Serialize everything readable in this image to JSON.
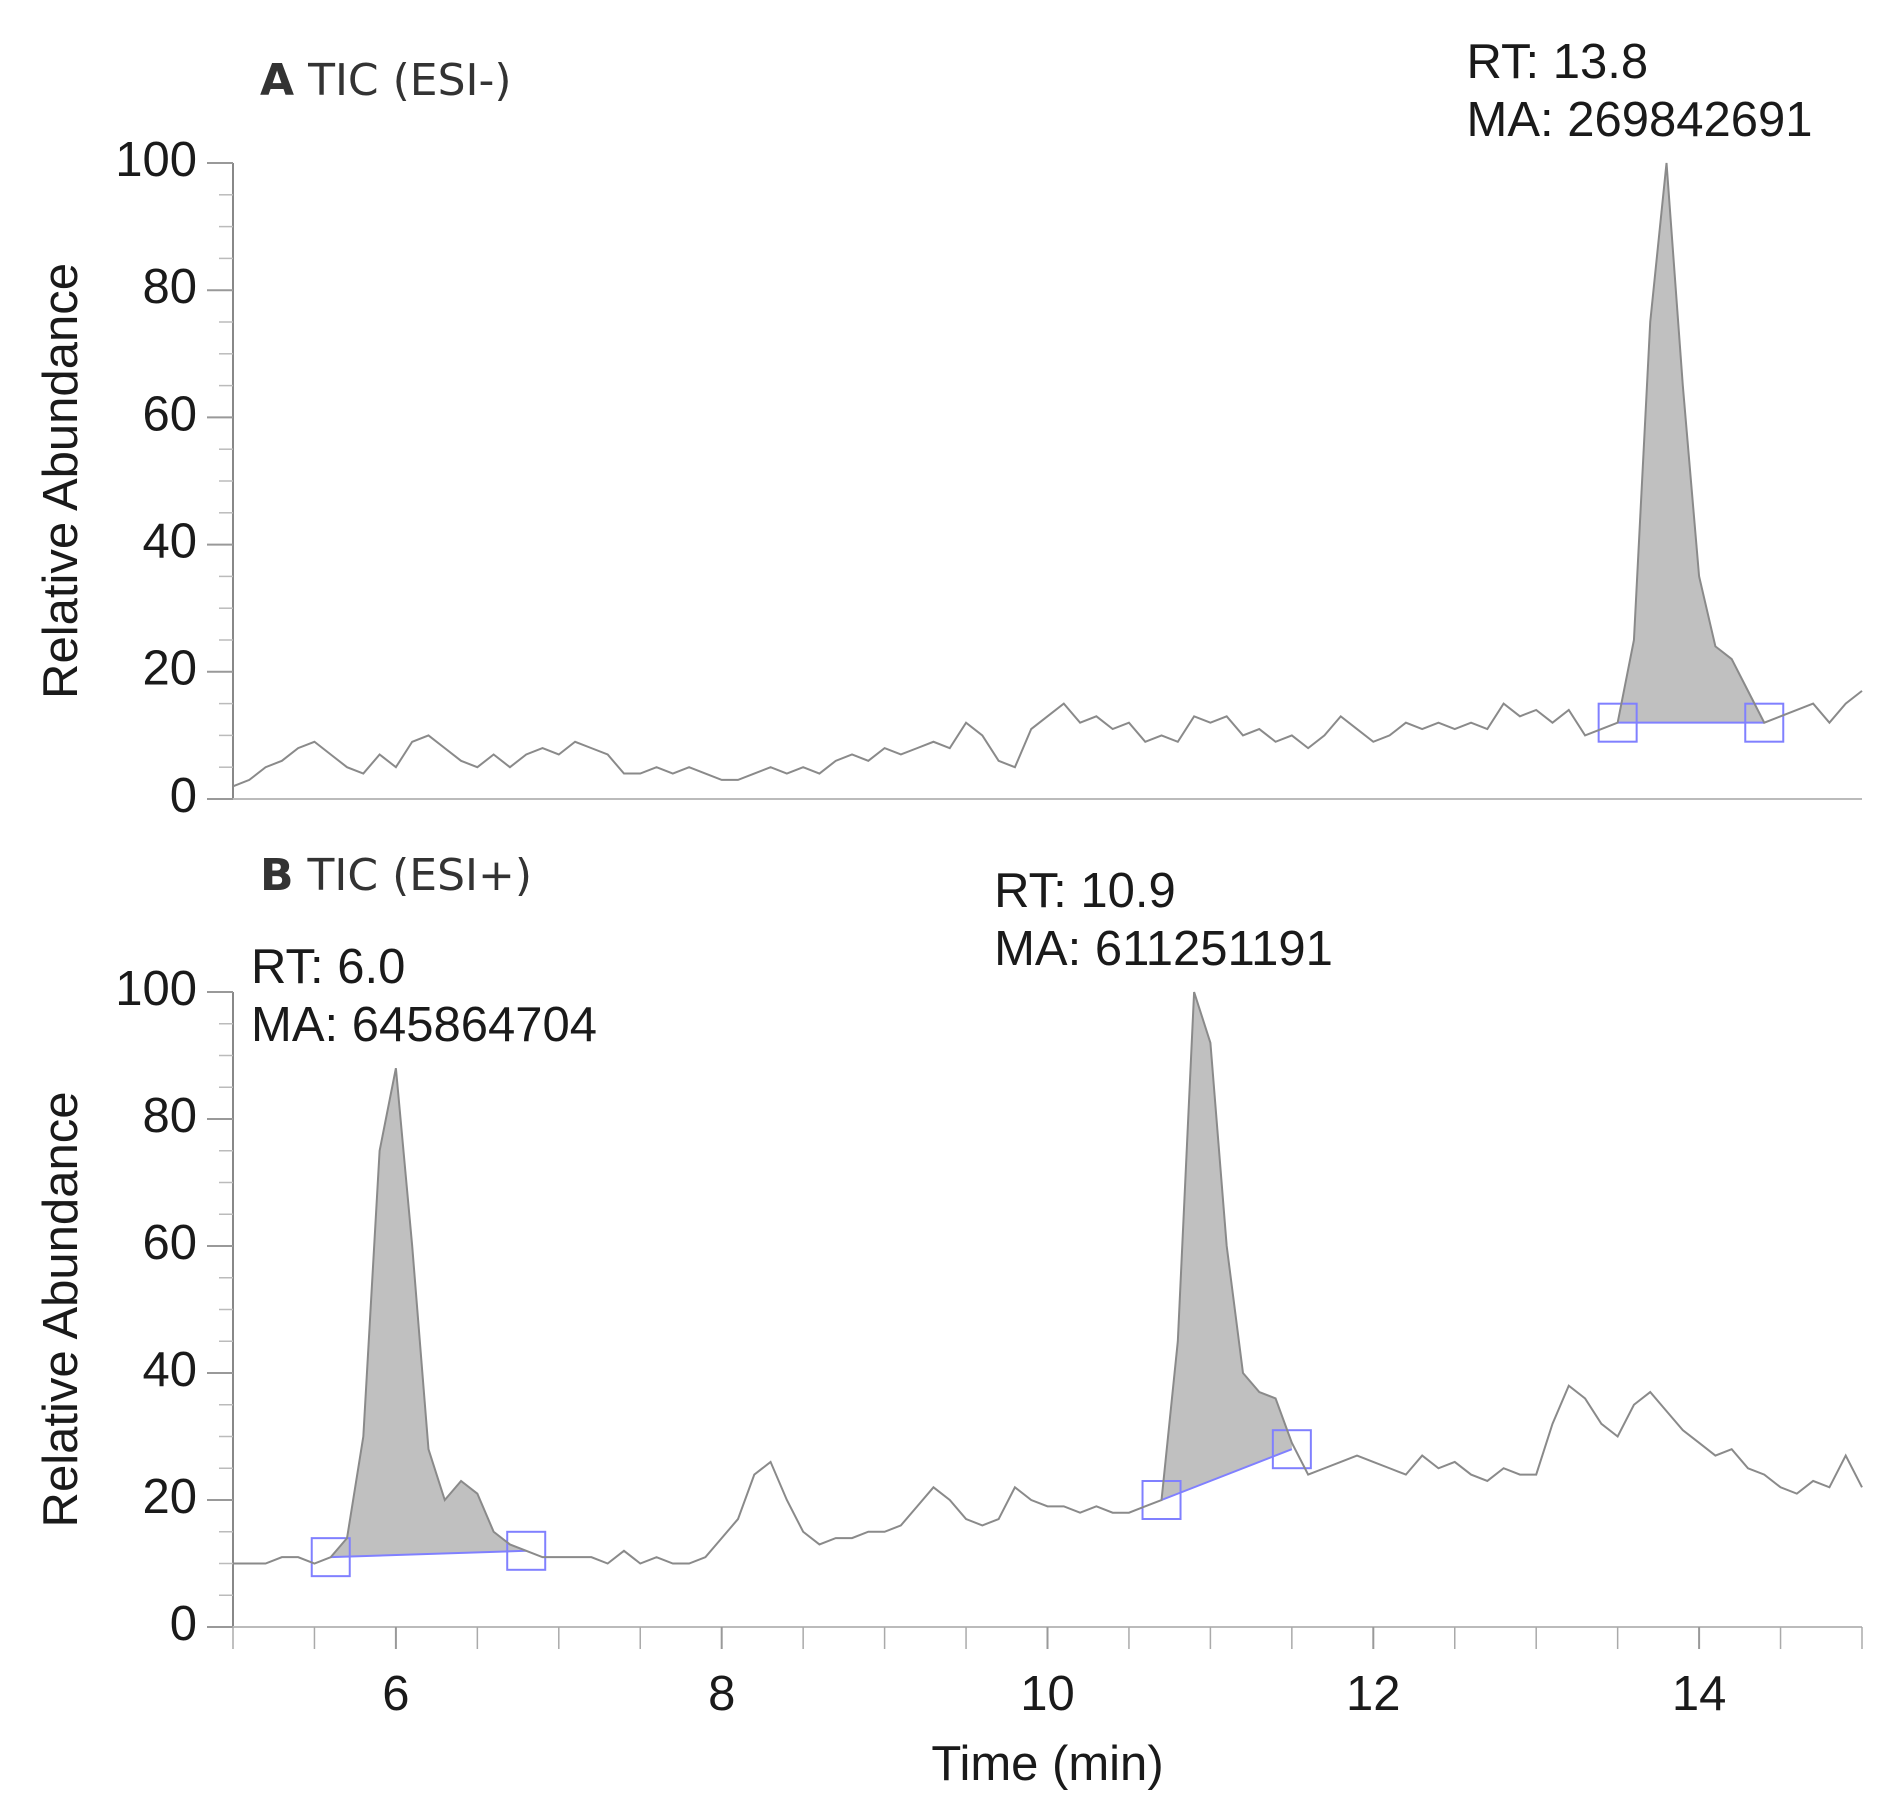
{
  "chart_data": [
    {
      "type": "line",
      "panel": "A",
      "title": "TIC (ESI-)",
      "ylabel": "Relative Abundance",
      "x": [
        5.0,
        5.1,
        5.2,
        5.3,
        5.4,
        5.5,
        5.6,
        5.7,
        5.8,
        5.9,
        6.0,
        6.1,
        6.2,
        6.3,
        6.4,
        6.5,
        6.6,
        6.7,
        6.8,
        6.9,
        7.0,
        7.1,
        7.2,
        7.3,
        7.4,
        7.5,
        7.6,
        7.7,
        7.8,
        7.9,
        8.0,
        8.1,
        8.2,
        8.3,
        8.4,
        8.5,
        8.6,
        8.7,
        8.8,
        8.9,
        9.0,
        9.1,
        9.2,
        9.3,
        9.4,
        9.5,
        9.6,
        9.7,
        9.8,
        9.9,
        10.0,
        10.1,
        10.2,
        10.3,
        10.4,
        10.5,
        10.6,
        10.7,
        10.8,
        10.9,
        11.0,
        11.1,
        11.2,
        11.3,
        11.4,
        11.5,
        11.6,
        11.7,
        11.8,
        11.9,
        12.0,
        12.1,
        12.2,
        12.3,
        12.4,
        12.5,
        12.6,
        12.7,
        12.8,
        12.9,
        13.0,
        13.1,
        13.2,
        13.3,
        13.4,
        13.5,
        13.6,
        13.7,
        13.8,
        13.9,
        14.0,
        14.1,
        14.2,
        14.3,
        14.4,
        14.5,
        14.6,
        14.7,
        14.8,
        14.9,
        15.0
      ],
      "values": [
        2,
        3,
        5,
        6,
        8,
        9,
        7,
        5,
        4,
        7,
        5,
        9,
        10,
        8,
        6,
        5,
        7,
        5,
        7,
        8,
        7,
        9,
        8,
        7,
        4,
        4,
        5,
        4,
        5,
        4,
        3,
        3,
        4,
        5,
        4,
        5,
        4,
        6,
        7,
        6,
        8,
        7,
        8,
        9,
        8,
        12,
        10,
        6,
        5,
        11,
        13,
        15,
        12,
        13,
        11,
        12,
        9,
        10,
        9,
        13,
        12,
        13,
        10,
        11,
        9,
        10,
        8,
        10,
        13,
        11,
        9,
        10,
        12,
        11,
        12,
        11,
        12,
        11,
        15,
        13,
        14,
        12,
        14,
        10,
        11,
        12,
        25,
        75,
        100,
        65,
        35,
        24,
        22,
        17,
        12,
        13,
        14,
        15,
        12,
        15,
        17
      ],
      "color": "#8a8a8a",
      "fill": "#c0c0c0",
      "baseline_color": "#8080ff",
      "peaks": [
        {
          "start": 13.5,
          "end": 14.4,
          "baseline": [
            12,
            12
          ],
          "label": [
            "RT: 13.8",
            "MA: 269842691"
          ]
        }
      ],
      "xlim": [
        5,
        15
      ],
      "ylim": [
        0,
        100
      ],
      "yticks": [
        0,
        20,
        40,
        60,
        80,
        100
      ],
      "yminorticks": [
        5,
        10,
        15,
        25,
        30,
        35,
        45,
        50,
        55,
        65,
        70,
        75,
        85,
        90,
        95
      ]
    },
    {
      "type": "line",
      "panel": "B",
      "title": "TIC (ESI+)",
      "ylabel": "Relative Abundance",
      "xlabel": "Time (min)",
      "x": [
        5.0,
        5.1,
        5.2,
        5.3,
        5.4,
        5.5,
        5.6,
        5.7,
        5.8,
        5.9,
        6.0,
        6.1,
        6.2,
        6.3,
        6.4,
        6.5,
        6.6,
        6.7,
        6.8,
        6.9,
        7.0,
        7.1,
        7.2,
        7.3,
        7.4,
        7.5,
        7.6,
        7.7,
        7.8,
        7.9,
        8.0,
        8.1,
        8.2,
        8.3,
        8.4,
        8.5,
        8.6,
        8.7,
        8.8,
        8.9,
        9.0,
        9.1,
        9.2,
        9.3,
        9.4,
        9.5,
        9.6,
        9.7,
        9.8,
        9.9,
        10.0,
        10.1,
        10.2,
        10.3,
        10.4,
        10.5,
        10.6,
        10.7,
        10.8,
        10.9,
        11.0,
        11.1,
        11.2,
        11.3,
        11.4,
        11.5,
        11.6,
        11.7,
        11.8,
        11.9,
        12.0,
        12.1,
        12.2,
        12.3,
        12.4,
        12.5,
        12.6,
        12.7,
        12.8,
        12.9,
        13.0,
        13.1,
        13.2,
        13.3,
        13.4,
        13.5,
        13.6,
        13.7,
        13.8,
        13.9,
        14.0,
        14.1,
        14.2,
        14.3,
        14.4,
        14.5,
        14.6,
        14.7,
        14.8,
        14.9,
        15.0
      ],
      "values": [
        10,
        10,
        10,
        11,
        11,
        10,
        11,
        14,
        30,
        75,
        88,
        60,
        28,
        20,
        23,
        21,
        15,
        13,
        12,
        11,
        11,
        11,
        11,
        10,
        12,
        10,
        11,
        10,
        10,
        11,
        14,
        17,
        24,
        26,
        20,
        15,
        13,
        14,
        14,
        15,
        15,
        16,
        19,
        22,
        20,
        17,
        16,
        17,
        22,
        20,
        19,
        19,
        18,
        19,
        18,
        18,
        19,
        20,
        45,
        100,
        92,
        60,
        40,
        37,
        36,
        29,
        24,
        25,
        26,
        27,
        26,
        25,
        24,
        27,
        25,
        26,
        24,
        23,
        25,
        24,
        24,
        32,
        38,
        36,
        32,
        30,
        35,
        37,
        34,
        31,
        29,
        27,
        28,
        25,
        24,
        22,
        21,
        23,
        22,
        27,
        22
      ],
      "color": "#8a8a8a",
      "fill": "#c0c0c0",
      "baseline_color": "#8080ff",
      "peaks": [
        {
          "start": 5.6,
          "end": 6.8,
          "baseline": [
            11,
            12
          ],
          "label": [
            "RT: 6.0",
            "MA: 645864704"
          ]
        },
        {
          "start": 10.7,
          "end": 11.5,
          "baseline": [
            20,
            28
          ],
          "label": [
            "RT: 10.9",
            "MA: 611251191"
          ]
        }
      ],
      "xlim": [
        5,
        15
      ],
      "ylim": [
        0,
        100
      ],
      "yticks": [
        0,
        20,
        40,
        60,
        80,
        100
      ],
      "yminorticks": [
        5,
        10,
        15,
        25,
        30,
        35,
        45,
        50,
        55,
        65,
        70,
        75,
        85,
        90,
        95
      ],
      "xticks": [
        6,
        8,
        10,
        12,
        14
      ],
      "xminorticks": [
        5,
        5.5,
        6.5,
        7,
        7.5,
        8.5,
        9,
        9.5,
        10.5,
        11,
        11.5,
        12.5,
        13,
        13.5,
        14.5,
        15
      ]
    }
  ]
}
